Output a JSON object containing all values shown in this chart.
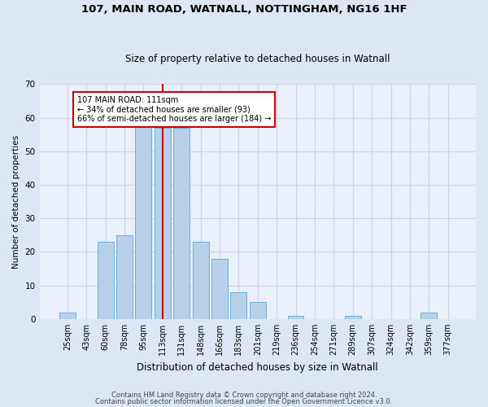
{
  "title1": "107, MAIN ROAD, WATNALL, NOTTINGHAM, NG16 1HF",
  "title2": "Size of property relative to detached houses in Watnall",
  "xlabel": "Distribution of detached houses by size in Watnall",
  "ylabel": "Number of detached properties",
  "categories": [
    "25sqm",
    "43sqm",
    "60sqm",
    "78sqm",
    "95sqm",
    "113sqm",
    "131sqm",
    "148sqm",
    "166sqm",
    "183sqm",
    "201sqm",
    "219sqm",
    "236sqm",
    "254sqm",
    "271sqm",
    "289sqm",
    "307sqm",
    "324sqm",
    "342sqm",
    "359sqm",
    "377sqm"
  ],
  "values": [
    2,
    0,
    23,
    25,
    59,
    57,
    57,
    23,
    18,
    8,
    5,
    0,
    1,
    0,
    0,
    1,
    0,
    0,
    0,
    2,
    0
  ],
  "bar_color": "#b8d0ea",
  "bar_edge_color": "#6aaed6",
  "vline_x": 5,
  "vline_color": "#cc0000",
  "annotation_text": "107 MAIN ROAD: 111sqm\n← 34% of detached houses are smaller (93)\n66% of semi-detached houses are larger (184) →",
  "annotation_box_color": "#ffffff",
  "annotation_box_edge_color": "#cc0000",
  "ylim": [
    0,
    70
  ],
  "yticks": [
    0,
    10,
    20,
    30,
    40,
    50,
    60,
    70
  ],
  "footer1": "Contains HM Land Registry data © Crown copyright and database right 2024.",
  "footer2": "Contains public sector information licensed under the Open Government Licence v3.0.",
  "bg_color": "#dce6f5",
  "plot_bg_color": "#eaf0f9",
  "title1_fontsize": 9.5,
  "title2_fontsize": 8.5,
  "xlabel_fontsize": 8.5,
  "ylabel_fontsize": 7.5,
  "tick_fontsize": 7,
  "annotation_fontsize": 7,
  "footer_fontsize": 6
}
